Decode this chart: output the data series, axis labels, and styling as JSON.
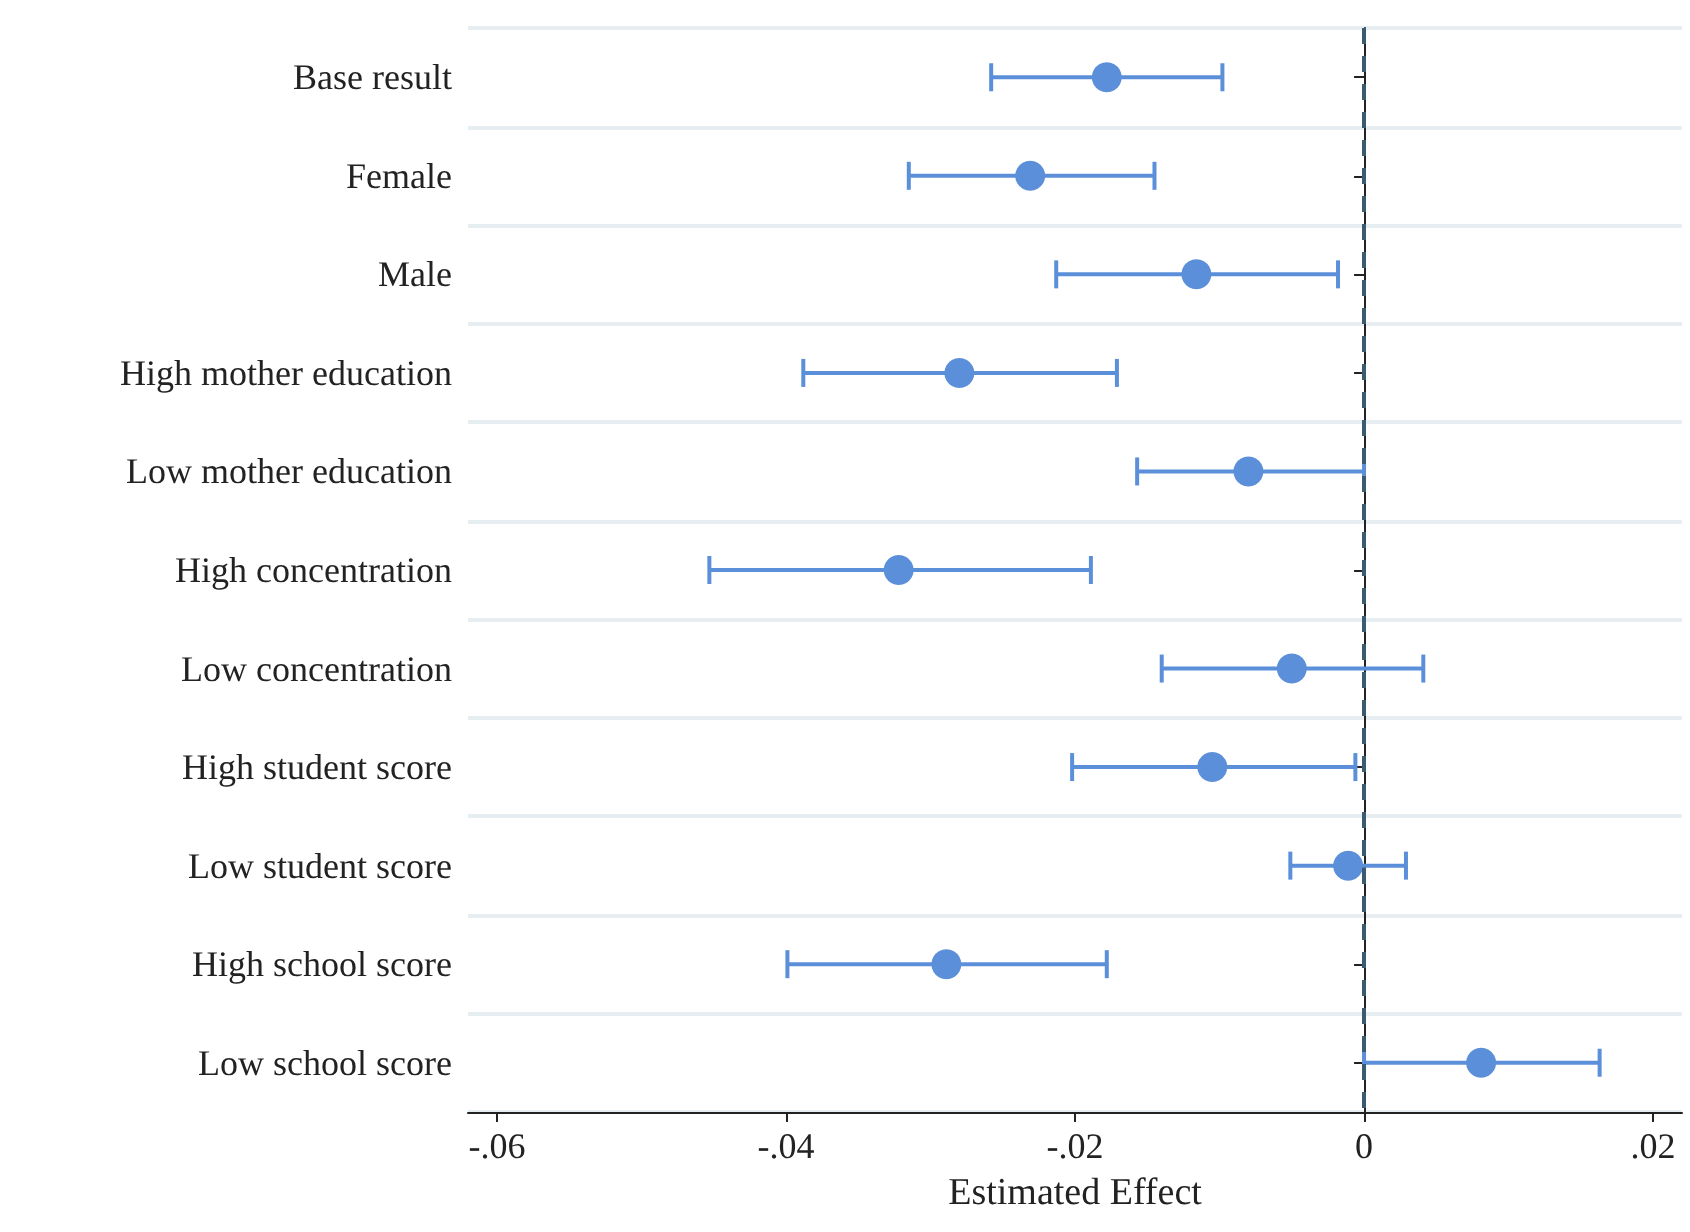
{
  "chart_data": {
    "type": "scatter",
    "orientation": "horizontal",
    "xlabel": "Estimated Effect",
    "categories": [
      "Base result",
      "Female",
      "Male",
      "High mother education",
      "Low mother education",
      "High concentration",
      "Low concentration",
      "High student score",
      "Low student score",
      "High school score",
      "Low school score"
    ],
    "values": [
      -0.0178,
      -0.0231,
      -0.0116,
      -0.028,
      -0.008,
      -0.0322,
      -0.005,
      -0.0105,
      -0.0011,
      -0.0289,
      0.0081
    ],
    "errors": [
      [
        -0.0258,
        -0.0098
      ],
      [
        -0.0315,
        -0.0145
      ],
      [
        -0.0213,
        -0.0018
      ],
      [
        -0.0388,
        -0.0171
      ],
      [
        -0.0157,
        0
      ],
      [
        -0.0453,
        -0.0189
      ],
      [
        -0.014,
        0.0041
      ],
      [
        -0.0202,
        -0.0006
      ],
      [
        -0.0051,
        0.0029
      ],
      [
        -0.0399,
        -0.0178
      ],
      [
        0,
        0.0163
      ]
    ],
    "color": "#5b8fd9",
    "marker": "circle",
    "grid": "y",
    "xlim": [
      -0.062,
      0.022
    ],
    "xticks": [
      {
        "value": -0.06,
        "label": "-.06"
      },
      {
        "value": -0.04,
        "label": "-.04"
      },
      {
        "value": -0.02,
        "label": "-.02"
      },
      0,
      {
        "value": 0.02,
        "label": ".02"
      }
    ],
    "ref_lines": [
      {
        "axis": "x",
        "value": 0,
        "color": "#3b5b70",
        "line_style": "dashed"
      }
    ]
  }
}
